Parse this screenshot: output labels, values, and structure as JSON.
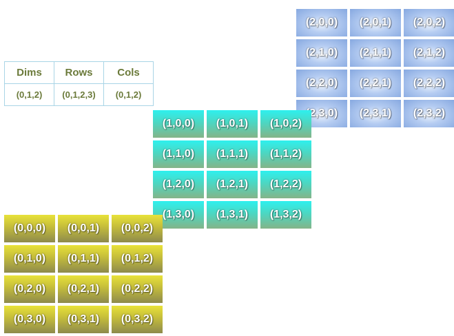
{
  "legend": {
    "headers": [
      "Dims",
      "Rows",
      "Cols"
    ],
    "values": [
      "(0,1,2)",
      "(0,1,2,3)",
      "(0,1,2)"
    ]
  },
  "planes": [
    {
      "index": 2,
      "color": "#9ab8ea",
      "cells": [
        [
          "(2,0,0)",
          "(2,0,1)",
          "(2,0,2)"
        ],
        [
          "(2,1,0)",
          "(2,1,1)",
          "(2,1,2)"
        ],
        [
          "(2,2,0)",
          "(2,2,1)",
          "(2,2,2)"
        ],
        [
          "(2,3,0)",
          "(2,3,1)",
          "(2,3,2)"
        ]
      ]
    },
    {
      "index": 1,
      "color": "#2ef0ee",
      "cells": [
        [
          "(1,0,0)",
          "(1,0,1)",
          "(1,0,2)"
        ],
        [
          "(1,1,0)",
          "(1,1,1)",
          "(1,1,2)"
        ],
        [
          "(1,2,0)",
          "(1,2,1)",
          "(1,2,2)"
        ],
        [
          "(1,3,0)",
          "(1,3,1)",
          "(1,3,2)"
        ]
      ]
    },
    {
      "index": 0,
      "color": "#e8e23a",
      "cells": [
        [
          "(0,0,0)",
          "(0,0,1)",
          "(0,0,2)"
        ],
        [
          "(0,1,0)",
          "(0,1,1)",
          "(0,1,2)"
        ],
        [
          "(0,2,0)",
          "(0,2,1)",
          "(0,2,2)"
        ],
        [
          "(0,3,0)",
          "(0,3,1)",
          "(0,3,2)"
        ]
      ]
    }
  ]
}
